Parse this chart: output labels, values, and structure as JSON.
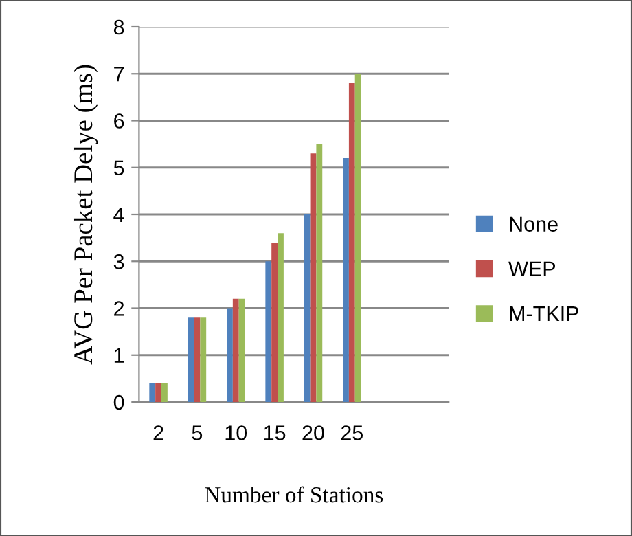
{
  "chart_data": {
    "type": "bar",
    "xlabel": "Number of Stations",
    "ylabel": "AVG Per Packet Delye (ms)",
    "categories": [
      "2",
      "5",
      "10",
      "15",
      "20",
      "25",
      null,
      null
    ],
    "series": [
      {
        "name": "None",
        "color": "#4f81bd",
        "values": [
          0.4,
          1.8,
          2.0,
          3.0,
          4.0,
          5.2,
          null,
          null
        ]
      },
      {
        "name": "WEP",
        "color": "#c0504d",
        "values": [
          0.4,
          1.8,
          2.2,
          3.4,
          5.3,
          6.8,
          null,
          null
        ]
      },
      {
        "name": "M-TKIP",
        "color": "#9bbb59",
        "values": [
          0.4,
          1.8,
          2.2,
          3.6,
          5.5,
          7.0,
          null,
          null
        ]
      }
    ],
    "ylim": [
      0,
      8
    ],
    "yticks": [
      0,
      1,
      2,
      3,
      4,
      5,
      6,
      7,
      8
    ],
    "grid": "y",
    "legend": "right"
  }
}
